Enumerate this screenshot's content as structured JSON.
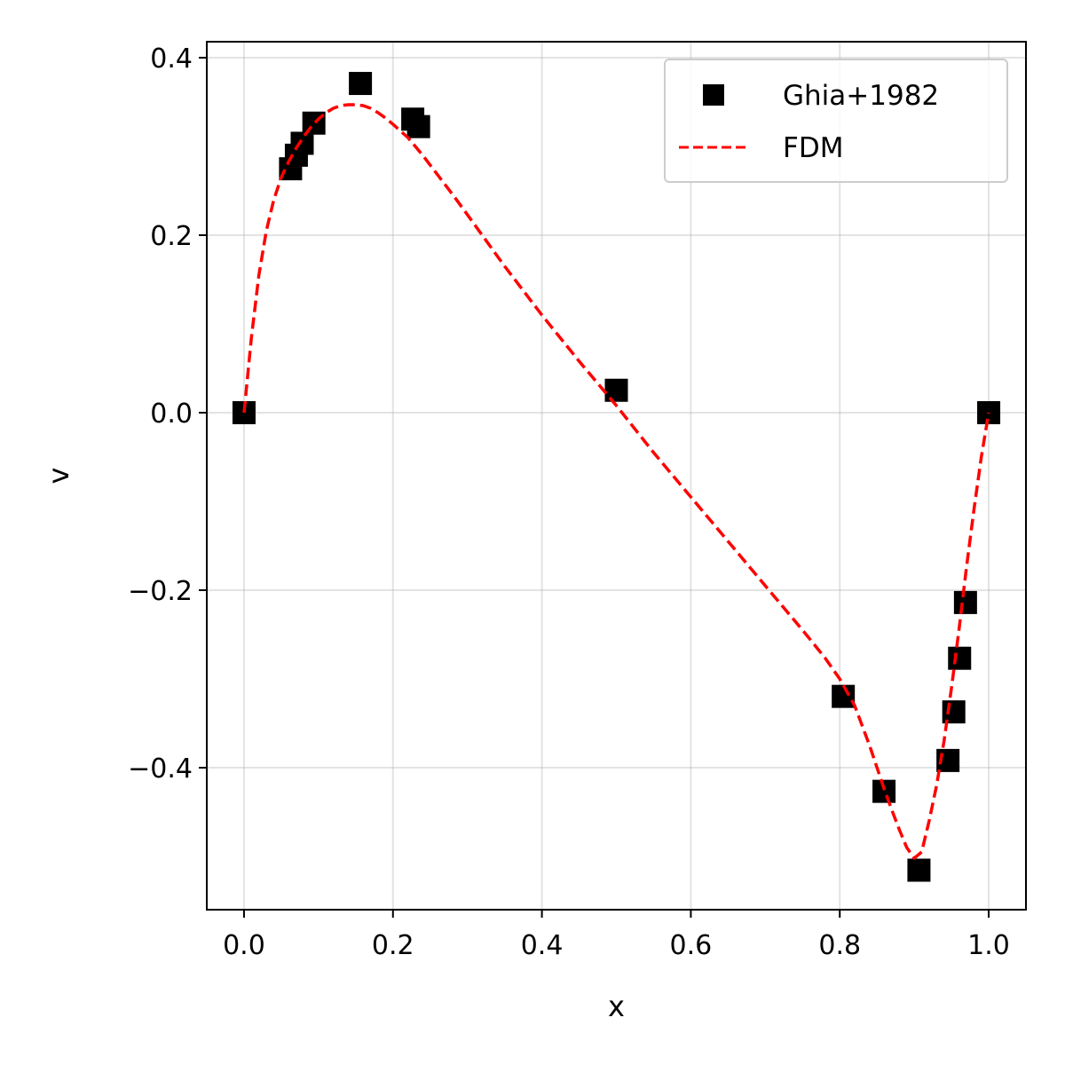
{
  "chart_data": {
    "type": "scatter",
    "xlabel": "x",
    "ylabel": "v",
    "xlim": [
      -0.05,
      1.05
    ],
    "ylim": [
      -0.56,
      0.418
    ],
    "grid": true,
    "legend_position": "top-right",
    "x_ticks": [
      {
        "value": 0.0,
        "label": "0.0"
      },
      {
        "value": 0.2,
        "label": "0.2"
      },
      {
        "value": 0.4,
        "label": "0.4"
      },
      {
        "value": 0.6,
        "label": "0.6"
      },
      {
        "value": 0.8,
        "label": "0.8"
      },
      {
        "value": 1.0,
        "label": "1.0"
      }
    ],
    "y_ticks": [
      {
        "value": 0.4,
        "label": "0.4"
      },
      {
        "value": 0.2,
        "label": "0.2"
      },
      {
        "value": 0.0,
        "label": "0.0"
      },
      {
        "value": -0.2,
        "label": "−0.2"
      },
      {
        "value": -0.4,
        "label": "−0.4"
      }
    ],
    "series": [
      {
        "name": "Ghia+1982",
        "kind": "scatter",
        "marker": "square",
        "color": "#000000",
        "x": [
          0.0,
          0.0625,
          0.0703,
          0.0781,
          0.0938,
          0.1563,
          0.2266,
          0.2344,
          0.5,
          0.8047,
          0.8594,
          0.9063,
          0.9453,
          0.9531,
          0.9609,
          0.9688,
          1.0
        ],
        "y": [
          0.0,
          0.27485,
          0.29012,
          0.30353,
          0.32627,
          0.37095,
          0.33075,
          0.32235,
          0.02526,
          -0.31966,
          -0.42665,
          -0.5155,
          -0.39188,
          -0.33714,
          -0.27669,
          -0.21388,
          0.0
        ]
      },
      {
        "name": "FDM",
        "kind": "line",
        "style": "dashed",
        "color": "#ff0000",
        "x": [
          0.0,
          0.01,
          0.02,
          0.03,
          0.04,
          0.05,
          0.06,
          0.07,
          0.08,
          0.09,
          0.1,
          0.11,
          0.12,
          0.13,
          0.14,
          0.15,
          0.16,
          0.17,
          0.18,
          0.19,
          0.2,
          0.22,
          0.24,
          0.26,
          0.28,
          0.3,
          0.35,
          0.4,
          0.45,
          0.5,
          0.55,
          0.6,
          0.65,
          0.7,
          0.75,
          0.78,
          0.8,
          0.82,
          0.84,
          0.86,
          0.87,
          0.88,
          0.89,
          0.9,
          0.91,
          0.92,
          0.93,
          0.94,
          0.95,
          0.96,
          0.97,
          0.98,
          0.99,
          1.0
        ],
        "y": [
          0.0,
          0.085,
          0.155,
          0.205,
          0.24,
          0.265,
          0.283,
          0.298,
          0.311,
          0.322,
          0.331,
          0.338,
          0.343,
          0.346,
          0.347,
          0.347,
          0.346,
          0.343,
          0.338,
          0.332,
          0.325,
          0.31,
          0.29,
          0.268,
          0.246,
          0.223,
          0.165,
          0.11,
          0.058,
          0.008,
          -0.045,
          -0.095,
          -0.145,
          -0.195,
          -0.245,
          -0.276,
          -0.3,
          -0.33,
          -0.375,
          -0.425,
          -0.448,
          -0.47,
          -0.49,
          -0.502,
          -0.495,
          -0.46,
          -0.42,
          -0.37,
          -0.31,
          -0.245,
          -0.175,
          -0.11,
          -0.05,
          0.0
        ]
      }
    ]
  }
}
